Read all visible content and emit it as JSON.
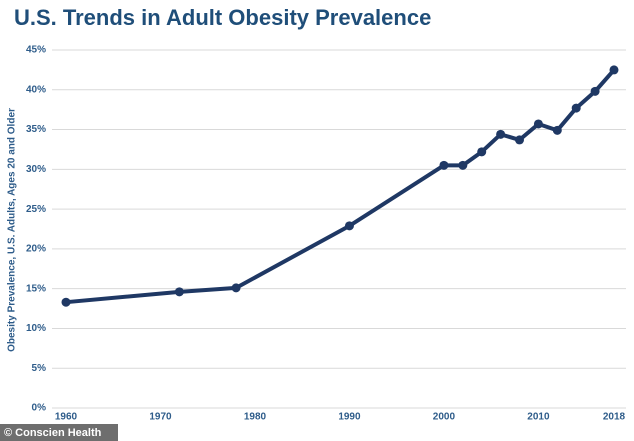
{
  "chart_data": {
    "type": "line",
    "title": "U.S. Trends in Adult Obesity Prevalence",
    "y_label": "Obesity Prevalence, U.S. Adults, Ages 20 and Older",
    "watermark": "© Conscien Health",
    "x": [
      1960,
      1972,
      1978,
      1990,
      2000,
      2002,
      2004,
      2006,
      2008,
      2010,
      2012,
      2014,
      2016,
      2018
    ],
    "series": [
      {
        "name": "Adult obesity prevalence",
        "color": "#1f3864",
        "values": [
          13.3,
          14.6,
          15.1,
          22.9,
          30.5,
          30.5,
          32.2,
          34.4,
          33.7,
          35.7,
          34.9,
          37.7,
          39.8,
          42.5
        ]
      }
    ],
    "xlim": [
      1960,
      2018
    ],
    "xticks": [
      1960,
      1970,
      1980,
      1990,
      2000,
      2010,
      2018
    ],
    "ylim": [
      0,
      45
    ],
    "yticks": [
      {
        "value": 0,
        "label": "0%"
      },
      {
        "value": 5,
        "label": "5%"
      },
      {
        "value": 10,
        "label": "10%"
      },
      {
        "value": 15,
        "label": "15%"
      },
      {
        "value": 20,
        "label": "20%"
      },
      {
        "value": 25,
        "label": "25%"
      },
      {
        "value": 30,
        "label": "30%"
      },
      {
        "value": 35,
        "label": "35%"
      },
      {
        "value": 40,
        "label": "40%"
      },
      {
        "value": 45,
        "label": "45%"
      }
    ],
    "grid": true
  }
}
